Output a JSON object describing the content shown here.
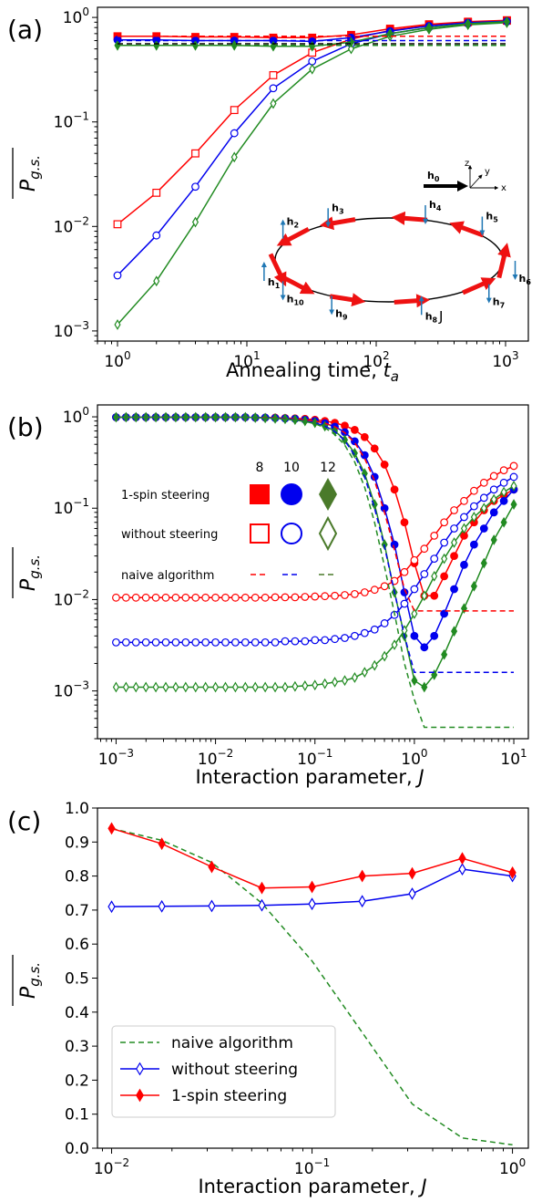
{
  "chart_data": [
    {
      "panel_label": "(a)",
      "type": "line",
      "xlabel": "Annealing time, ",
      "xlabel_var": "t",
      "xlabel_sub": "a",
      "ylabel": "P",
      "ylabel_sub": "g.s.",
      "xscale": "log",
      "yscale": "log",
      "xlim": [
        0.7,
        1500
      ],
      "ylim": [
        0.0008,
        1.25
      ],
      "xticks": [
        {
          "v": 1,
          "m": "10",
          "e": "0"
        },
        {
          "v": 10,
          "m": "10",
          "e": "1"
        },
        {
          "v": 100,
          "m": "10",
          "e": "2"
        },
        {
          "v": 1000,
          "m": "10",
          "e": "3"
        }
      ],
      "yticks": [
        {
          "v": 0.001,
          "m": "10",
          "e": "−3"
        },
        {
          "v": 0.01,
          "m": "10",
          "e": "−2"
        },
        {
          "v": 0.1,
          "m": "10",
          "e": "−1"
        },
        {
          "v": 1,
          "m": "10",
          "e": "0"
        }
      ],
      "x": [
        1,
        2,
        4,
        8,
        16,
        32,
        64,
        128,
        256,
        512,
        1024
      ],
      "series": [
        {
          "color": "#ff0000",
          "style": "solid",
          "marker": "square",
          "fill": "open",
          "values": [
            0.0105,
            0.021,
            0.05,
            0.13,
            0.28,
            0.46,
            0.62,
            0.75,
            0.84,
            0.9,
            0.93
          ]
        },
        {
          "color": "#0000ee",
          "style": "solid",
          "marker": "circle",
          "fill": "open",
          "values": [
            0.0034,
            0.0082,
            0.024,
            0.078,
            0.21,
            0.38,
            0.56,
            0.7,
            0.8,
            0.87,
            0.91
          ]
        },
        {
          "color": "#228b22",
          "style": "solid",
          "marker": "diamond",
          "fill": "open",
          "values": [
            0.00115,
            0.003,
            0.011,
            0.046,
            0.15,
            0.32,
            0.5,
            0.66,
            0.77,
            0.85,
            0.89
          ]
        },
        {
          "color": "#ff0000",
          "style": "solid",
          "marker": "square",
          "fill": "filled",
          "values": [
            0.66,
            0.66,
            0.65,
            0.65,
            0.64,
            0.64,
            0.68,
            0.78,
            0.86,
            0.91,
            0.94
          ]
        },
        {
          "color": "#0000ee",
          "style": "solid",
          "marker": "circle",
          "fill": "filled",
          "values": [
            0.61,
            0.61,
            0.6,
            0.6,
            0.6,
            0.59,
            0.64,
            0.74,
            0.83,
            0.89,
            0.92
          ]
        },
        {
          "color": "#228b22",
          "style": "solid",
          "marker": "diamond",
          "fill": "filled",
          "values": [
            0.54,
            0.54,
            0.54,
            0.54,
            0.53,
            0.53,
            0.58,
            0.7,
            0.8,
            0.87,
            0.91
          ]
        },
        {
          "color": "#ff0000",
          "style": "dashed",
          "marker": "none",
          "values": [
            0.66,
            0.66,
            0.66,
            0.66,
            0.66,
            0.66,
            0.66,
            0.66,
            0.66,
            0.66,
            0.66
          ]
        },
        {
          "color": "#0000ee",
          "style": "dashed",
          "marker": "none",
          "values": [
            0.6,
            0.6,
            0.6,
            0.6,
            0.6,
            0.6,
            0.6,
            0.6,
            0.6,
            0.6,
            0.6
          ]
        },
        {
          "color": "#000000",
          "style": "dashed",
          "marker": "none",
          "values": [
            0.56,
            0.56,
            0.56,
            0.56,
            0.56,
            0.56,
            0.56,
            0.56,
            0.56,
            0.56,
            0.56
          ]
        },
        {
          "color": "#228b22",
          "style": "dashed",
          "marker": "none",
          "values": [
            0.54,
            0.54,
            0.54,
            0.54,
            0.54,
            0.54,
            0.54,
            0.54,
            0.54,
            0.54,
            0.54
          ]
        }
      ],
      "inset": {
        "field_label": "h",
        "field_label_sub": "0",
        "axes": [
          "z",
          "y",
          "x"
        ],
        "sites": [
          {
            "sub": "1",
            "up": true
          },
          {
            "sub": "2",
            "up": true
          },
          {
            "sub": "3",
            "up": false
          },
          {
            "sub": "4",
            "up": false
          },
          {
            "sub": "5",
            "up": false
          },
          {
            "sub": "6",
            "up": false
          },
          {
            "sub": "7",
            "up": false
          },
          {
            "sub": "8",
            "up": true
          },
          {
            "sub": "9",
            "up": false
          },
          {
            "sub": "10",
            "up": false
          }
        ],
        "coupling_label": "J"
      }
    },
    {
      "panel_label": "(b)",
      "type": "line",
      "xlabel": "Interaction parameter, ",
      "xlabel_var": "J",
      "ylabel": "P",
      "ylabel_sub": "g.s.",
      "xscale": "log",
      "yscale": "log",
      "xlim": [
        0.00065,
        14
      ],
      "ylim": [
        0.0003,
        1.35
      ],
      "xticks": [
        {
          "v": 0.001,
          "m": "10",
          "e": "−3"
        },
        {
          "v": 0.01,
          "m": "10",
          "e": "−2"
        },
        {
          "v": 0.1,
          "m": "10",
          "e": "−1"
        },
        {
          "v": 1,
          "m": "10",
          "e": "0"
        },
        {
          "v": 10,
          "m": "10",
          "e": "1"
        }
      ],
      "yticks": [
        {
          "v": 0.001,
          "m": "10",
          "e": "−3"
        },
        {
          "v": 0.01,
          "m": "10",
          "e": "−2"
        },
        {
          "v": 0.1,
          "m": "10",
          "e": "−1"
        },
        {
          "v": 1,
          "m": "10",
          "e": "0"
        }
      ],
      "x_range": [
        0.001,
        10
      ],
      "x_count": 41,
      "series": [
        {
          "color": "#ff0000",
          "style": "solid",
          "marker": "circle",
          "fill": "filled",
          "values": [
            0.99,
            0.99,
            0.99,
            0.99,
            0.99,
            0.99,
            0.99,
            0.99,
            0.99,
            0.99,
            0.99,
            0.99,
            0.99,
            0.99,
            0.98,
            0.98,
            0.98,
            0.97,
            0.96,
            0.95,
            0.93,
            0.9,
            0.86,
            0.8,
            0.72,
            0.6,
            0.45,
            0.3,
            0.16,
            0.07,
            0.025,
            0.011,
            0.011,
            0.018,
            0.03,
            0.05,
            0.07,
            0.095,
            0.12,
            0.14,
            0.16
          ]
        },
        {
          "color": "#0000ee",
          "style": "solid",
          "marker": "circle",
          "fill": "filled",
          "values": [
            0.99,
            0.99,
            0.99,
            0.99,
            0.99,
            0.99,
            0.99,
            0.99,
            0.99,
            0.99,
            0.99,
            0.99,
            0.99,
            0.99,
            0.98,
            0.98,
            0.97,
            0.96,
            0.95,
            0.93,
            0.9,
            0.85,
            0.78,
            0.68,
            0.54,
            0.38,
            0.22,
            0.1,
            0.04,
            0.012,
            0.004,
            0.003,
            0.004,
            0.007,
            0.013,
            0.024,
            0.04,
            0.06,
            0.09,
            0.12,
            0.16
          ]
        },
        {
          "color": "#228b22",
          "style": "solid",
          "marker": "diamond",
          "fill": "filled",
          "values": [
            0.99,
            0.99,
            0.99,
            0.99,
            0.99,
            0.99,
            0.99,
            0.99,
            0.99,
            0.99,
            0.99,
            0.99,
            0.99,
            0.99,
            0.98,
            0.97,
            0.96,
            0.95,
            0.93,
            0.9,
            0.86,
            0.79,
            0.7,
            0.56,
            0.4,
            0.24,
            0.11,
            0.04,
            0.012,
            0.004,
            0.0013,
            0.0011,
            0.0015,
            0.0025,
            0.0045,
            0.008,
            0.014,
            0.025,
            0.045,
            0.07,
            0.11
          ]
        },
        {
          "color": "#ff0000",
          "style": "solid",
          "marker": "circle",
          "fill": "open",
          "values": [
            0.0105,
            0.0105,
            0.0105,
            0.0105,
            0.0105,
            0.0105,
            0.0105,
            0.0105,
            0.0105,
            0.0105,
            0.0105,
            0.0105,
            0.0105,
            0.0105,
            0.0105,
            0.0105,
            0.0106,
            0.0106,
            0.0106,
            0.0107,
            0.0108,
            0.0109,
            0.011,
            0.0112,
            0.0115,
            0.012,
            0.0128,
            0.014,
            0.016,
            0.02,
            0.027,
            0.036,
            0.05,
            0.07,
            0.095,
            0.12,
            0.155,
            0.19,
            0.225,
            0.26,
            0.29
          ]
        },
        {
          "color": "#0000ee",
          "style": "solid",
          "marker": "circle",
          "fill": "open",
          "values": [
            0.0034,
            0.0034,
            0.0034,
            0.0034,
            0.0034,
            0.0034,
            0.0034,
            0.0034,
            0.0034,
            0.0034,
            0.0034,
            0.0034,
            0.0034,
            0.0034,
            0.0034,
            0.0034,
            0.0034,
            0.0035,
            0.0035,
            0.0035,
            0.0036,
            0.0036,
            0.0037,
            0.0038,
            0.004,
            0.0043,
            0.0047,
            0.0055,
            0.0068,
            0.009,
            0.013,
            0.019,
            0.028,
            0.042,
            0.06,
            0.08,
            0.105,
            0.13,
            0.16,
            0.19,
            0.22
          ]
        },
        {
          "color": "#228b22",
          "style": "solid",
          "marker": "diamond",
          "fill": "open",
          "values": [
            0.0011,
            0.0011,
            0.0011,
            0.0011,
            0.0011,
            0.0011,
            0.0011,
            0.0011,
            0.0011,
            0.0011,
            0.0011,
            0.0011,
            0.0011,
            0.0011,
            0.0011,
            0.0011,
            0.0011,
            0.0011,
            0.00112,
            0.00114,
            0.00116,
            0.0012,
            0.00125,
            0.0013,
            0.0014,
            0.0016,
            0.0019,
            0.0024,
            0.0032,
            0.0046,
            0.007,
            0.011,
            0.018,
            0.028,
            0.042,
            0.06,
            0.08,
            0.1,
            0.125,
            0.15,
            0.175
          ]
        },
        {
          "color": "#ff0000",
          "style": "dashed",
          "marker": "none",
          "values": [
            0.99,
            0.99,
            0.99,
            0.99,
            0.99,
            0.99,
            0.99,
            0.99,
            0.99,
            0.99,
            0.99,
            0.99,
            0.99,
            0.99,
            0.98,
            0.98,
            0.97,
            0.96,
            0.95,
            0.93,
            0.9,
            0.85,
            0.78,
            0.67,
            0.52,
            0.35,
            0.2,
            0.09,
            0.035,
            0.013,
            0.0075,
            0.0075,
            0.0075,
            0.0075,
            0.0075,
            0.0075,
            0.0075,
            0.0075,
            0.0075,
            0.0075,
            0.0075
          ]
        },
        {
          "color": "#0000ee",
          "style": "dashed",
          "marker": "none",
          "values": [
            0.99,
            0.99,
            0.99,
            0.99,
            0.99,
            0.99,
            0.99,
            0.99,
            0.99,
            0.99,
            0.99,
            0.99,
            0.99,
            0.99,
            0.98,
            0.97,
            0.96,
            0.95,
            0.93,
            0.9,
            0.86,
            0.79,
            0.69,
            0.55,
            0.38,
            0.22,
            0.1,
            0.038,
            0.012,
            0.004,
            0.0016,
            0.0016,
            0.0016,
            0.0016,
            0.0016,
            0.0016,
            0.0016,
            0.0016,
            0.0016,
            0.0016,
            0.0016
          ]
        },
        {
          "color": "#228b22",
          "style": "dashed",
          "marker": "none",
          "values": [
            0.99,
            0.99,
            0.99,
            0.99,
            0.99,
            0.99,
            0.99,
            0.99,
            0.99,
            0.99,
            0.99,
            0.99,
            0.99,
            0.99,
            0.98,
            0.97,
            0.96,
            0.94,
            0.92,
            0.89,
            0.84,
            0.76,
            0.64,
            0.49,
            0.32,
            0.17,
            0.07,
            0.023,
            0.007,
            0.002,
            0.0008,
            0.0004,
            0.0004,
            0.0004,
            0.0004,
            0.0004,
            0.0004,
            0.0004,
            0.0004,
            0.0004,
            0.0004
          ]
        }
      ],
      "legend": {
        "sizes": [
          "8",
          "10",
          "12"
        ],
        "size_colors": [
          "#ff0000",
          "#0000ee",
          "#4a7a2a"
        ],
        "rows": [
          "1-spin steering",
          "without steering",
          "naive algorithm"
        ]
      }
    },
    {
      "panel_label": "(c)",
      "type": "line",
      "xlabel": "Interaction parameter, ",
      "xlabel_var": "J",
      "ylabel": "P",
      "ylabel_sub": "g.s.",
      "xscale": "log",
      "yscale": "linear",
      "xlim": [
        0.0085,
        1.2
      ],
      "ylim": [
        0.0,
        1.0
      ],
      "xticks": [
        {
          "v": 0.01,
          "m": "10",
          "e": "−2"
        },
        {
          "v": 0.1,
          "m": "10",
          "e": "−1"
        },
        {
          "v": 1,
          "m": "10",
          "e": "0"
        }
      ],
      "yticks": [
        "0.0",
        "0.1",
        "0.2",
        "0.3",
        "0.4",
        "0.5",
        "0.6",
        "0.7",
        "0.8",
        "0.9",
        "1.0"
      ],
      "x": [
        0.01,
        0.0178,
        0.0316,
        0.0562,
        0.1,
        0.178,
        0.316,
        0.562,
        1.0
      ],
      "series": [
        {
          "name": "naive algorithm",
          "color": "#228b22",
          "style": "dashed",
          "marker": "none",
          "values": [
            0.94,
            0.905,
            0.84,
            0.72,
            0.55,
            0.34,
            0.13,
            0.03,
            0.01
          ]
        },
        {
          "name": "without steering",
          "color": "#0000ee",
          "style": "solid",
          "marker": "diamond",
          "fill": "open",
          "values": [
            0.71,
            0.711,
            0.712,
            0.714,
            0.718,
            0.726,
            0.748,
            0.82,
            0.8
          ]
        },
        {
          "name": "1-spin steering",
          "color": "#ff0000",
          "style": "solid",
          "marker": "diamond",
          "fill": "filled",
          "values": [
            0.94,
            0.895,
            0.827,
            0.765,
            0.768,
            0.8,
            0.808,
            0.852,
            0.81
          ]
        }
      ],
      "legend_position": "lower-left"
    }
  ]
}
